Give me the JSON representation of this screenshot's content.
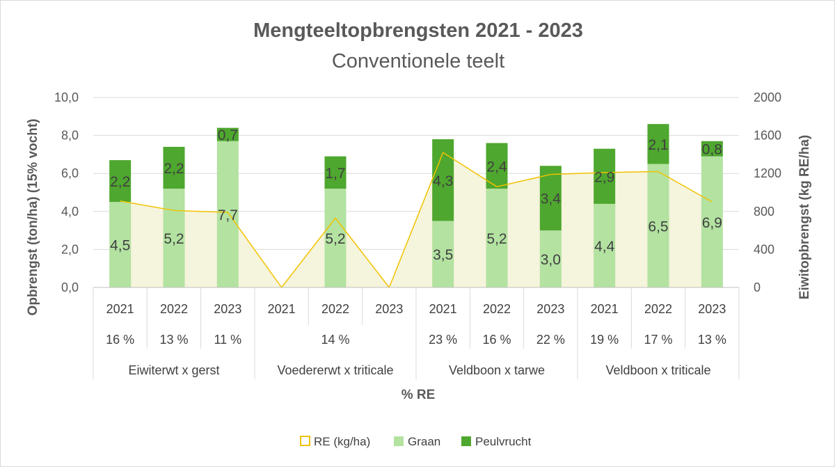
{
  "chart_data": {
    "type": "bar",
    "title": "Mengteeltopbrengsten 2021 - 2023",
    "subtitle": "Conventionele teelt",
    "ylabel": "Opbrengst (ton/ha) (15% vocht)",
    "y2label": "Eiwitopbrengst (kg RE/ha)",
    "xlabel": "% RE",
    "ylim": [
      0,
      10
    ],
    "y2lim": [
      0,
      2000
    ],
    "yticks": [
      "0,0",
      "2,0",
      "4,0",
      "6,0",
      "8,0",
      "10,0"
    ],
    "y2ticks": [
      "0",
      "400",
      "800",
      "1200",
      "1600",
      "2000"
    ],
    "grid": true,
    "legend_position": "bottom",
    "colors": {
      "graan": "#b3e2a1",
      "peulvrucht": "#4ea72e",
      "re_line": "#f2c200",
      "re_area": "#f5f4dc"
    },
    "groups": [
      {
        "name": "Eiwiterwt x gerst",
        "years": [
          "2021",
          "2022",
          "2023"
        ],
        "re_pct": [
          "16 %",
          "13 %",
          "11 %"
        ],
        "re_pct_merged": false
      },
      {
        "name": "Voedererwt x triticale",
        "years": [
          "2021",
          "2022",
          "2023"
        ],
        "re_pct": [
          "14 %"
        ],
        "re_pct_merged": true
      },
      {
        "name": "Veldboon x tarwe",
        "years": [
          "2021",
          "2022",
          "2023"
        ],
        "re_pct": [
          "23 %",
          "16 %",
          "22 %"
        ],
        "re_pct_merged": false
      },
      {
        "name": "Veldboon x triticale",
        "years": [
          "2021",
          "2022",
          "2023"
        ],
        "re_pct": [
          "19 %",
          "17 %",
          "13 %"
        ],
        "re_pct_merged": false
      }
    ],
    "series": [
      {
        "name": "Graan",
        "axis": "left",
        "kind": "stacked-bar",
        "values": [
          4.5,
          5.2,
          7.7,
          null,
          5.2,
          null,
          3.5,
          5.2,
          3.0,
          4.4,
          6.5,
          6.9
        ],
        "labels": [
          "4,5",
          "5,2",
          "7,7",
          "",
          "5,2",
          "",
          "3,5",
          "5,2",
          "3,0",
          "4,4",
          "6,5",
          "6,9"
        ]
      },
      {
        "name": "Peulvrucht",
        "axis": "left",
        "kind": "stacked-bar",
        "values": [
          2.2,
          2.2,
          0.7,
          null,
          1.7,
          null,
          4.3,
          2.4,
          3.4,
          2.9,
          2.1,
          0.8
        ],
        "labels": [
          "2,2",
          "2,2",
          "0,7",
          "",
          "1,7",
          "",
          "4,3",
          "2,4",
          "3,4",
          "2,9",
          "2,1",
          "0,8"
        ]
      },
      {
        "name": "RE (kg/ha)",
        "axis": "right",
        "kind": "line-area",
        "values": [
          910,
          810,
          790,
          0,
          730,
          0,
          1420,
          1060,
          1190,
          1210,
          1220,
          900
        ]
      }
    ]
  }
}
